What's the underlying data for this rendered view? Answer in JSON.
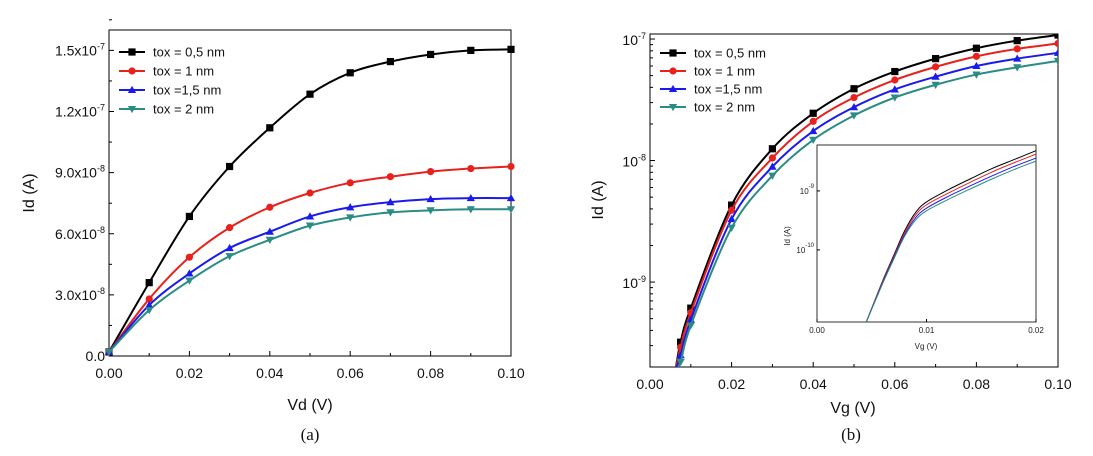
{
  "chart_data": [
    {
      "type": "line",
      "caption": "(a)",
      "xlabel": "Vd (V)",
      "ylabel": "Id (A)",
      "xlim": [
        0,
        0.1
      ],
      "ylim": [
        0,
        1.6e-07
      ],
      "xticks": [
        "0.00",
        "0.02",
        "0.04",
        "0.06",
        "0.08",
        "0.10"
      ],
      "yticks": [
        "0.0",
        "3.0x10-8",
        "6.0x10-8",
        "9.0x10-8",
        "1.2x10-7",
        "1.5x10-7"
      ],
      "legend_position": "top-left",
      "x": [
        0,
        0.01,
        0.02,
        0.03,
        0.04,
        0.05,
        0.06,
        0.07,
        0.08,
        0.09,
        0.1
      ],
      "series": [
        {
          "name": "tox = 0,5 nm",
          "color": "#000000",
          "marker": "square",
          "values": [
            2e-09,
            3.6e-08,
            6.85e-08,
            9.3e-08,
            1.12e-07,
            1.285e-07,
            1.39e-07,
            1.445e-07,
            1.48e-07,
            1.5e-07,
            1.505e-07
          ]
        },
        {
          "name": "tox = 1 nm",
          "color": "#e8211d",
          "marker": "circle",
          "values": [
            2e-09,
            2.8e-08,
            4.85e-08,
            6.3e-08,
            7.3e-08,
            8e-08,
            8.5e-08,
            8.8e-08,
            9.05e-08,
            9.2e-08,
            9.3e-08
          ]
        },
        {
          "name": "tox =1,5 nm",
          "color": "#1a1aef",
          "marker": "triangle-up",
          "values": [
            2e-09,
            2.5e-08,
            4.05e-08,
            5.3e-08,
            6.1e-08,
            6.85e-08,
            7.3e-08,
            7.55e-08,
            7.7e-08,
            7.75e-08,
            7.75e-08
          ]
        },
        {
          "name": "tox = 2 nm",
          "color": "#2a8c84",
          "marker": "triangle-down",
          "values": [
            2e-09,
            2.25e-08,
            3.7e-08,
            4.9e-08,
            5.7e-08,
            6.4e-08,
            6.8e-08,
            7.05e-08,
            7.15e-08,
            7.2e-08,
            7.2e-08
          ]
        }
      ]
    },
    {
      "type": "line",
      "caption": "(b)",
      "xlabel": "Vg (V)",
      "ylabel": "Id (A)",
      "yscale": "log",
      "xlim": [
        0,
        0.1
      ],
      "ylim": [
        2e-10,
        1.1e-07
      ],
      "xticks": [
        "0.00",
        "0.02",
        "0.04",
        "0.06",
        "0.08",
        "0.10"
      ],
      "yticks": [
        "10-9",
        "10-8",
        "10-7"
      ],
      "legend_position": "top-left",
      "x": [
        0.0075,
        0.01,
        0.02,
        0.03,
        0.04,
        0.05,
        0.06,
        0.07,
        0.08,
        0.09,
        0.1
      ],
      "series": [
        {
          "name": "tox = 0,5 nm",
          "color": "#000000",
          "marker": "square",
          "values": [
            3.2e-10,
            6.1e-10,
            4.3e-09,
            1.25e-08,
            2.45e-08,
            3.9e-08,
            5.4e-08,
            6.9e-08,
            8.4e-08,
            9.7e-08,
            1.08e-07
          ]
        },
        {
          "name": "tox = 1 nm",
          "color": "#e8211d",
          "marker": "circle",
          "values": [
            2.9e-10,
            5.6e-10,
            3.9e-09,
            1.05e-08,
            2.1e-08,
            3.3e-08,
            4.6e-08,
            5.9e-08,
            7.2e-08,
            8.3e-08,
            9.2e-08
          ]
        },
        {
          "name": "tox =1,5 nm",
          "color": "#1a1aef",
          "marker": "triangle-up",
          "values": [
            2.5e-10,
            4.9e-10,
            3.3e-09,
            8.9e-09,
            1.75e-08,
            2.75e-08,
            3.85e-08,
            4.9e-08,
            6e-08,
            6.9e-08,
            7.7e-08
          ]
        },
        {
          "name": "tox = 2 nm",
          "color": "#2a8c84",
          "marker": "triangle-down",
          "values": [
            2.2e-10,
            4.4e-10,
            2.8e-09,
            7.5e-09,
            1.48e-08,
            2.35e-08,
            3.3e-08,
            4.2e-08,
            5.1e-08,
            5.85e-08,
            6.6e-08
          ]
        }
      ],
      "inset": {
        "xlabel": "Vg (V)",
        "ylabel": "Id (A)",
        "yscale": "log",
        "xlim": [
          0,
          0.02
        ],
        "xticks": [
          "0.00",
          "0.01",
          "0.02"
        ],
        "yticks": [
          "10-10",
          "10-9"
        ],
        "x": [
          0.0045,
          0.006,
          0.007,
          0.008,
          0.009,
          0.01,
          0.012,
          0.014,
          0.016,
          0.018,
          0.02
        ],
        "series": [
          {
            "color": "#000000",
            "values": [
              1e-11,
              3e-11,
              8e-11,
              2.1e-10,
              4.3e-10,
              6.5e-10,
              1.05e-09,
              1.6e-09,
              2.4e-09,
              3.4e-09,
              4.8e-09
            ]
          },
          {
            "color": "#e8211d",
            "values": [
              1e-11,
              2.9e-11,
              7.6e-11,
              1.95e-10,
              3.9e-10,
              5.8e-10,
              9.2e-10,
              1.4e-09,
              2.1e-09,
              3e-09,
              4.2e-09
            ]
          },
          {
            "color": "#1a1aef",
            "values": [
              1e-11,
              2.8e-11,
              7.2e-11,
              1.8e-10,
              3.5e-10,
              5.1e-10,
              8.1e-10,
              1.22e-09,
              1.8e-09,
              2.6e-09,
              3.6e-09
            ]
          },
          {
            "color": "#2a8c84",
            "values": [
              1e-11,
              2.7e-11,
              6.9e-11,
              1.7e-10,
              3.2e-10,
              4.6e-10,
              7.2e-10,
              1.08e-09,
              1.6e-09,
              2.3e-09,
              3.2e-09
            ]
          }
        ]
      }
    }
  ]
}
